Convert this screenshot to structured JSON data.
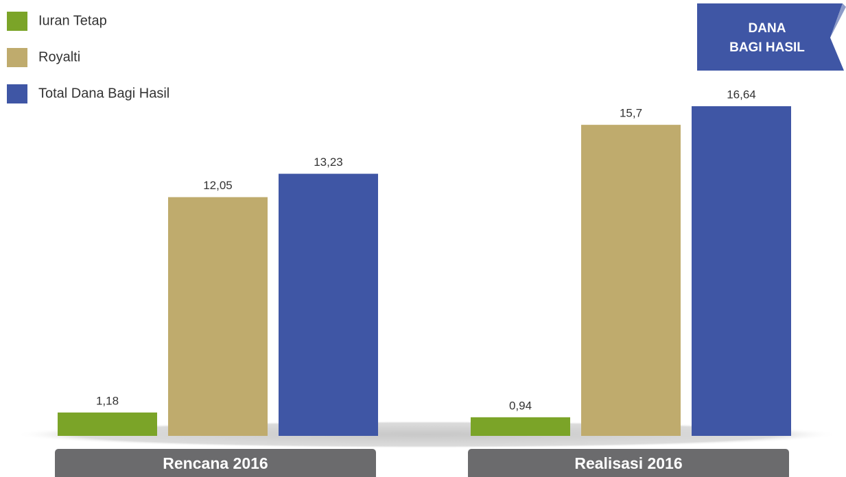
{
  "chart_data": {
    "type": "bar",
    "badge": [
      "DANA",
      "BAGI HASIL"
    ],
    "categories": [
      "Rencana 2016",
      "Realisasi 2016"
    ],
    "series": [
      {
        "name": "Iuran Tetap",
        "color": "#7ba428",
        "values": [
          1.18,
          0.94
        ],
        "value_labels": [
          "1,18",
          "0,94"
        ]
      },
      {
        "name": "Royalti",
        "color": "#bfab6d",
        "values": [
          12.05,
          15.7
        ],
        "value_labels": [
          "12,05",
          "15,7"
        ]
      },
      {
        "name": "Total Dana Bagi Hasil",
        "color": "#3f56a5",
        "values": [
          13.23,
          16.64
        ],
        "value_labels": [
          "13,23",
          "16,64"
        ]
      }
    ],
    "ylim": [
      0,
      22
    ]
  }
}
